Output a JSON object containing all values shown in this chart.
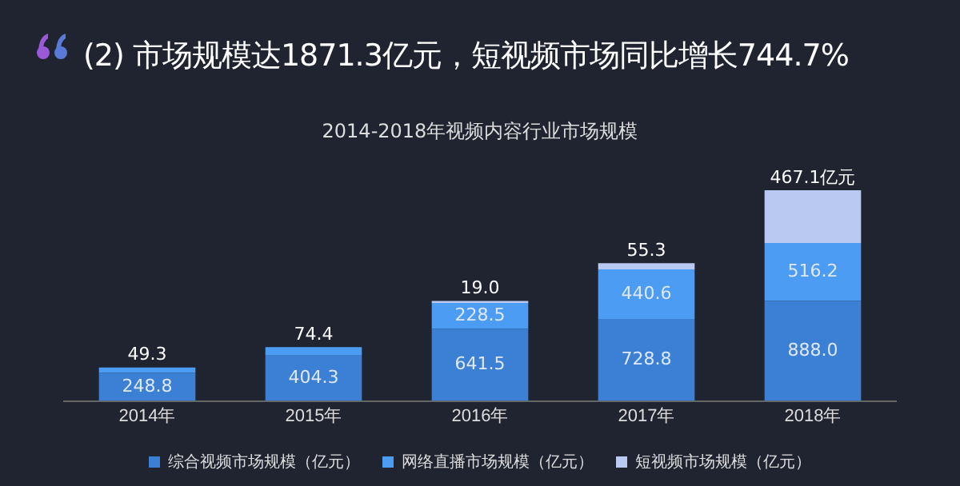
{
  "chart_data": {
    "type": "bar",
    "title": "(2) 市场规模达1871.3亿元，短视频市场同比增长744.7%",
    "subtitle": "2014-2018年视频内容行业市场规模",
    "categories": [
      "2014年",
      "2015年",
      "2016年",
      "2017年",
      "2018年"
    ],
    "stacked": true,
    "legend": "bottom",
    "tick_labels": "x",
    "series": [
      {
        "name": "综合视频市场规模（亿元）",
        "color": "#3b80d4",
        "values": [
          248.8,
          404.3,
          641.5,
          728.8,
          888.0
        ],
        "value_labels": [
          "248.8",
          "404.3",
          "641.5",
          "728.8",
          "888.0"
        ]
      },
      {
        "name": "网络直播市场规模（亿元）",
        "color": "#4b9cf2",
        "values": [
          49.3,
          74.4,
          228.5,
          440.6,
          516.2
        ],
        "value_labels": [
          "49.3",
          "74.4",
          "228.5",
          "440.6",
          "516.2"
        ]
      },
      {
        "name": "短视频市场规模（亿元）",
        "color": "#b9c9f2",
        "values": [
          null,
          null,
          19.0,
          55.3,
          467.1
        ],
        "value_labels": [
          null,
          null,
          "19.0",
          "55.3",
          "467.1亿元"
        ]
      }
    ]
  }
}
